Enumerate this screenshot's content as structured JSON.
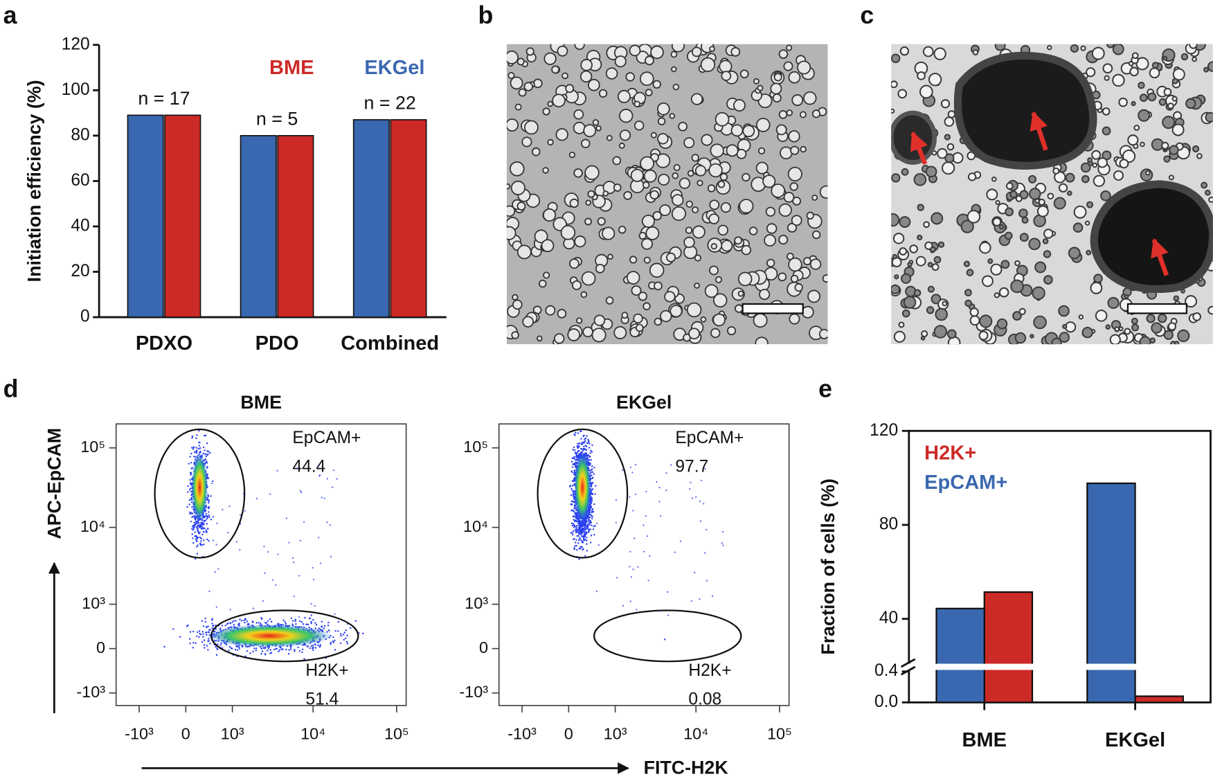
{
  "panels": [
    "a",
    "b",
    "c",
    "d",
    "e"
  ],
  "chart_data": [
    {
      "type": "bar",
      "ylabel": "Initiation efficiency (%)",
      "categories": [
        "PDXO",
        "PDO",
        "Combined"
      ],
      "series": [
        {
          "name": "EKGel",
          "color": "#3a68b0",
          "values": [
            89,
            80,
            87
          ]
        },
        {
          "name": "BME",
          "color": "#cc2a27",
          "values": [
            89,
            80,
            87
          ]
        }
      ],
      "annotations": [
        "n = 17",
        "n = 5",
        "n = 22"
      ],
      "ylim": [
        0,
        120
      ],
      "yticks": [
        0,
        20,
        40,
        60,
        80,
        100,
        120
      ]
    },
    {
      "type": "flow",
      "title": "BME",
      "xlabel": "FITC-H2K",
      "ylabel": "APC-EpCAM",
      "gates": [
        {
          "name": "EpCAM+",
          "value": 44.4
        },
        {
          "name": "H2K+",
          "value": 51.4
        }
      ],
      "xlim": [
        -2000,
        130000
      ],
      "ylim": [
        -1500,
        200000
      ],
      "xticks": [
        {
          "value": -1000,
          "label": "-10³"
        },
        0,
        {
          "value": 1000,
          "label": "10³"
        },
        {
          "value": 10000,
          "label": "10⁴"
        },
        {
          "value": 100000,
          "label": "10⁵"
        }
      ],
      "yticks": [
        {
          "value": -1000,
          "label": "-10³"
        },
        0,
        {
          "value": 1000,
          "label": "10³"
        },
        {
          "value": 10000,
          "label": "10⁴"
        },
        {
          "value": 100000,
          "label": "10⁵"
        }
      ]
    },
    {
      "type": "flow",
      "title": "EKGel",
      "gates": [
        {
          "name": "EpCAM+",
          "value": 97.7
        },
        {
          "name": "H2K+",
          "value": 0.08
        }
      ],
      "xlim": [
        -2000,
        130000
      ],
      "ylim": [
        -1500,
        200000
      ],
      "xticks": [
        {
          "value": -1000,
          "label": "-10³"
        },
        0,
        {
          "value": 1000,
          "label": "10³"
        },
        {
          "value": 10000,
          "label": "10⁴"
        },
        {
          "value": 100000,
          "label": "10⁵"
        }
      ],
      "yticks": [
        {
          "value": -1000,
          "label": "-10³"
        },
        0,
        {
          "value": 1000,
          "label": "10³"
        },
        {
          "value": 10000,
          "label": "10⁴"
        },
        {
          "value": 100000,
          "label": "10⁵"
        }
      ]
    },
    {
      "type": "bar",
      "ylabel": "Fraction of cells (%)",
      "categories": [
        "BME",
        "EKGel"
      ],
      "series": [
        {
          "name": "H2K+",
          "color": "#cc2a27",
          "values": [
            51.4,
            0.08
          ]
        },
        {
          "name": "EpCAM+",
          "color": "#3a68b0",
          "values": [
            44.4,
            97.7
          ]
        }
      ],
      "ylim": [
        0,
        120
      ],
      "y_break": [
        0.4,
        40
      ],
      "yticks": [
        {
          "value": 0,
          "label": "0.0"
        },
        0.4,
        40,
        80,
        120
      ]
    }
  ]
}
